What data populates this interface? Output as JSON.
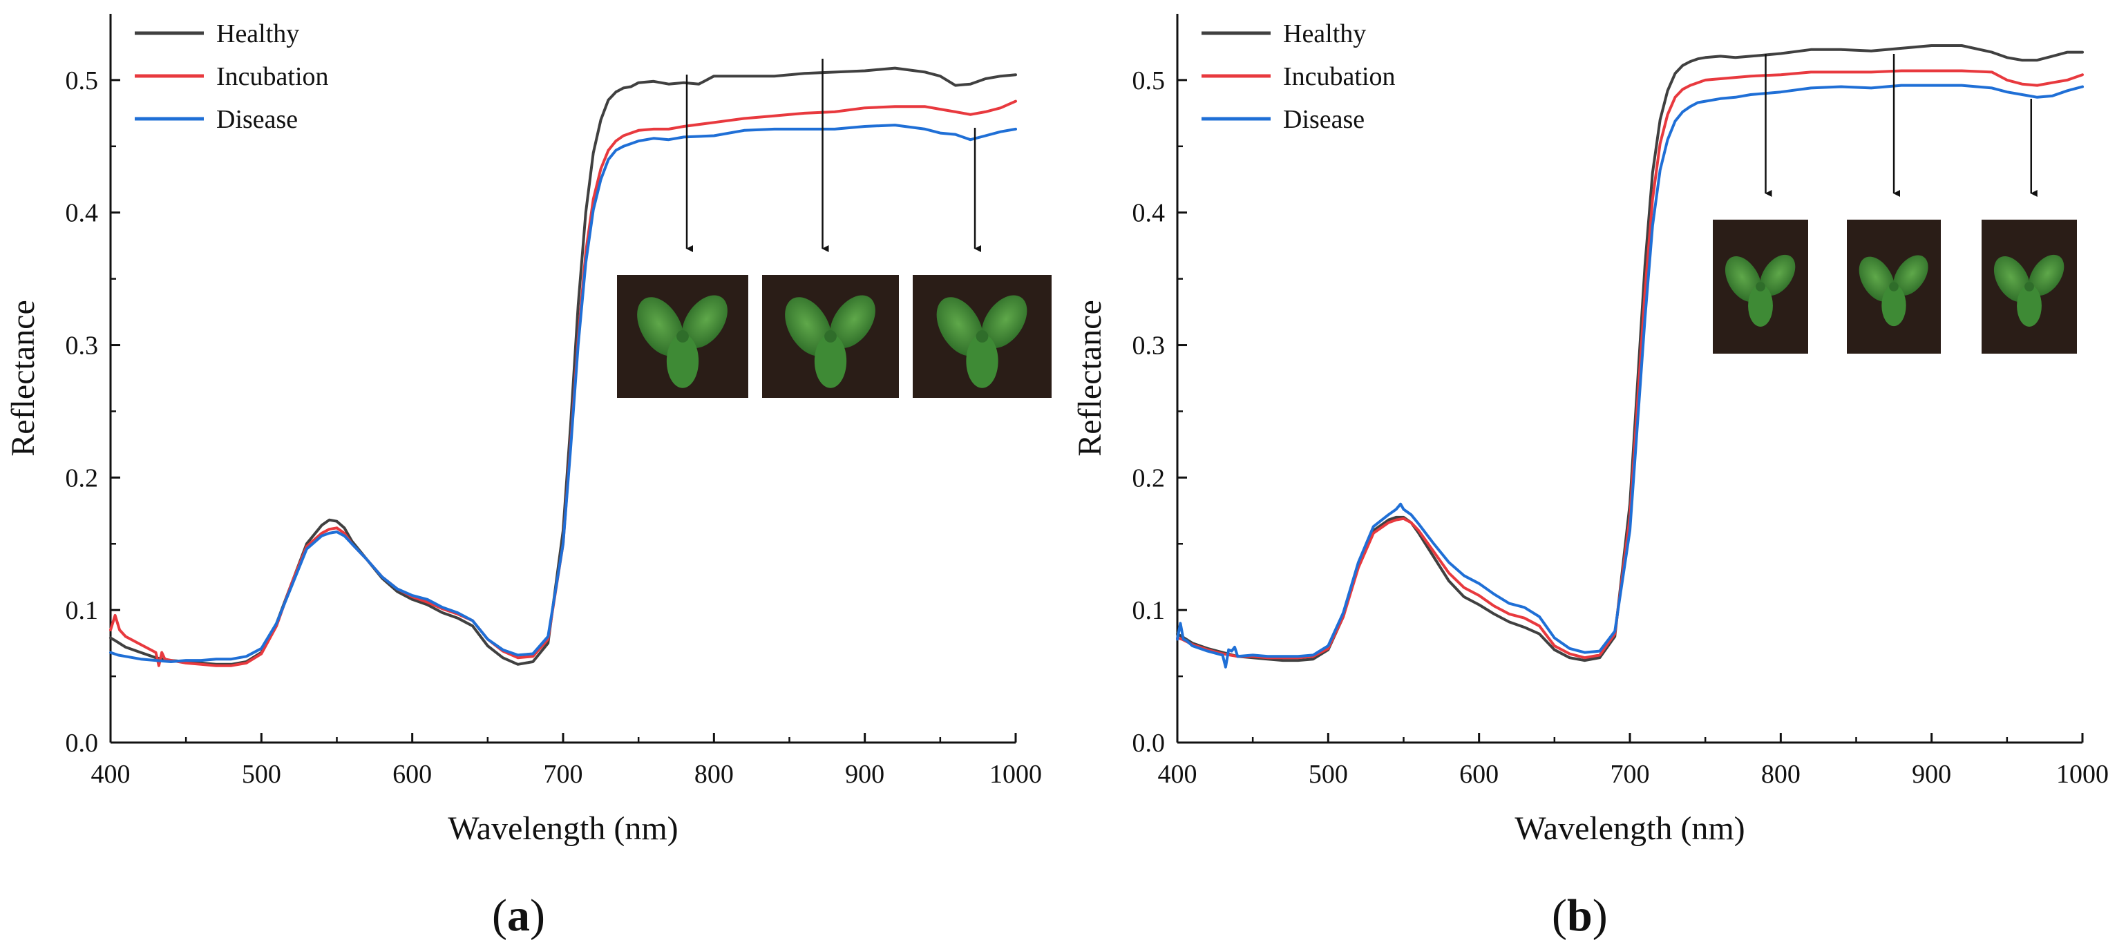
{
  "colors": {
    "healthy": "#404040",
    "incubation": "#e8393e",
    "disease": "#1f6fd6"
  },
  "panel_labels": [
    {
      "open": "(",
      "letter": "a",
      "close": ")"
    },
    {
      "open": "(",
      "letter": "b",
      "close": ")"
    }
  ],
  "chart_data": [
    {
      "type": "line",
      "panel": "a",
      "xlabel": "Wavelength (nm)",
      "ylabel": "Reflectance",
      "xlim": [
        400,
        1000
      ],
      "ylim": [
        0,
        0.55
      ],
      "xticks": [
        400,
        500,
        600,
        700,
        800,
        900,
        1000
      ],
      "xtick_labels": [
        "400",
        "500",
        "600",
        "700",
        "800",
        "900",
        "1000"
      ],
      "yticks": [
        0,
        0.1,
        0.2,
        0.3,
        0.4,
        0.5
      ],
      "ytick_labels": [
        "0.0",
        "0.1",
        "0.2",
        "0.3",
        "0.4",
        "0.5"
      ],
      "legend": {
        "position": "top-left",
        "entries": [
          "Healthy",
          "Incubation",
          "Disease"
        ]
      },
      "inset_markers_nm": [
        782,
        872,
        973
      ],
      "inset_marker_label": "leaf photo",
      "series": [
        {
          "name": "Healthy",
          "color_key": "healthy",
          "x": [
            400,
            403,
            410,
            420,
            430,
            440,
            450,
            460,
            470,
            480,
            490,
            500,
            510,
            520,
            530,
            540,
            545,
            550,
            555,
            560,
            570,
            580,
            590,
            600,
            610,
            620,
            630,
            640,
            650,
            660,
            670,
            680,
            690,
            700,
            705,
            710,
            715,
            720,
            725,
            730,
            735,
            740,
            745,
            750,
            760,
            770,
            780,
            790,
            800,
            820,
            840,
            860,
            880,
            900,
            920,
            940,
            950,
            960,
            970,
            980,
            990,
            1000
          ],
          "y": [
            0.079,
            0.077,
            0.072,
            0.068,
            0.064,
            0.062,
            0.061,
            0.06,
            0.059,
            0.059,
            0.061,
            0.068,
            0.09,
            0.12,
            0.15,
            0.164,
            0.168,
            0.167,
            0.162,
            0.152,
            0.138,
            0.124,
            0.114,
            0.108,
            0.104,
            0.098,
            0.094,
            0.088,
            0.073,
            0.064,
            0.059,
            0.061,
            0.075,
            0.16,
            0.24,
            0.33,
            0.4,
            0.445,
            0.47,
            0.485,
            0.491,
            0.494,
            0.495,
            0.498,
            0.499,
            0.497,
            0.498,
            0.497,
            0.503,
            0.503,
            0.503,
            0.505,
            0.506,
            0.507,
            0.509,
            0.506,
            0.503,
            0.496,
            0.497,
            0.501,
            0.503,
            0.504
          ]
        },
        {
          "name": "Incubation",
          "color_key": "incubation",
          "x": [
            400,
            403,
            406,
            410,
            420,
            430,
            432,
            434,
            436,
            440,
            450,
            460,
            470,
            480,
            490,
            500,
            510,
            520,
            530,
            540,
            545,
            550,
            555,
            560,
            570,
            580,
            590,
            600,
            610,
            620,
            630,
            640,
            650,
            660,
            670,
            680,
            690,
            700,
            705,
            710,
            715,
            720,
            725,
            730,
            735,
            740,
            745,
            750,
            760,
            770,
            780,
            800,
            820,
            840,
            860,
            880,
            900,
            920,
            940,
            950,
            960,
            970,
            980,
            990,
            1000
          ],
          "y": [
            0.085,
            0.096,
            0.085,
            0.08,
            0.074,
            0.068,
            0.058,
            0.068,
            0.063,
            0.062,
            0.06,
            0.059,
            0.058,
            0.058,
            0.06,
            0.067,
            0.088,
            0.12,
            0.148,
            0.158,
            0.161,
            0.162,
            0.158,
            0.15,
            0.138,
            0.125,
            0.116,
            0.11,
            0.106,
            0.101,
            0.097,
            0.092,
            0.078,
            0.069,
            0.064,
            0.065,
            0.078,
            0.15,
            0.225,
            0.305,
            0.37,
            0.41,
            0.433,
            0.447,
            0.454,
            0.458,
            0.46,
            0.462,
            0.463,
            0.463,
            0.465,
            0.468,
            0.471,
            0.473,
            0.475,
            0.476,
            0.479,
            0.48,
            0.48,
            0.478,
            0.476,
            0.474,
            0.476,
            0.479,
            0.484
          ]
        },
        {
          "name": "Disease",
          "color_key": "disease",
          "x": [
            400,
            405,
            410,
            420,
            430,
            440,
            450,
            460,
            470,
            480,
            490,
            500,
            510,
            520,
            530,
            540,
            545,
            550,
            555,
            560,
            570,
            580,
            590,
            600,
            610,
            620,
            630,
            640,
            650,
            660,
            670,
            680,
            690,
            700,
            705,
            710,
            715,
            720,
            725,
            730,
            735,
            740,
            745,
            750,
            760,
            770,
            780,
            800,
            820,
            840,
            860,
            880,
            900,
            920,
            940,
            950,
            960,
            970,
            980,
            990,
            1000
          ],
          "y": [
            0.068,
            0.066,
            0.065,
            0.063,
            0.062,
            0.061,
            0.062,
            0.062,
            0.063,
            0.063,
            0.065,
            0.071,
            0.09,
            0.118,
            0.146,
            0.156,
            0.158,
            0.159,
            0.156,
            0.15,
            0.138,
            0.125,
            0.116,
            0.111,
            0.108,
            0.102,
            0.098,
            0.092,
            0.078,
            0.07,
            0.066,
            0.067,
            0.08,
            0.15,
            0.222,
            0.3,
            0.362,
            0.402,
            0.425,
            0.44,
            0.447,
            0.45,
            0.452,
            0.454,
            0.456,
            0.455,
            0.457,
            0.458,
            0.462,
            0.463,
            0.463,
            0.463,
            0.465,
            0.466,
            0.463,
            0.46,
            0.459,
            0.455,
            0.458,
            0.461,
            0.463
          ]
        }
      ]
    },
    {
      "type": "line",
      "panel": "b",
      "xlabel": "Wavelength (nm)",
      "ylabel": "Reflectance",
      "xlim": [
        400,
        1000
      ],
      "ylim": [
        0,
        0.55
      ],
      "xticks": [
        400,
        500,
        600,
        700,
        800,
        900,
        1000
      ],
      "xtick_labels": [
        "400",
        "500",
        "600",
        "700",
        "800",
        "900",
        "1000"
      ],
      "yticks": [
        0,
        0.1,
        0.2,
        0.3,
        0.4,
        0.5
      ],
      "ytick_labels": [
        "0.0",
        "0.1",
        "0.2",
        "0.3",
        "0.4",
        "0.5"
      ],
      "legend": {
        "position": "top-left",
        "entries": [
          "Healthy",
          "Incubation",
          "Disease"
        ]
      },
      "inset_markers_nm": [
        790,
        875,
        966
      ],
      "inset_marker_label": "leaf photo",
      "series": [
        {
          "name": "Healthy",
          "color_key": "healthy",
          "x": [
            400,
            403,
            410,
            420,
            430,
            440,
            450,
            460,
            470,
            480,
            490,
            500,
            510,
            520,
            530,
            540,
            545,
            550,
            555,
            560,
            570,
            580,
            590,
            600,
            610,
            620,
            630,
            640,
            650,
            660,
            670,
            680,
            690,
            700,
            705,
            710,
            715,
            720,
            725,
            730,
            735,
            740,
            745,
            750,
            760,
            770,
            780,
            790,
            800,
            820,
            840,
            860,
            880,
            900,
            920,
            940,
            950,
            960,
            970,
            980,
            990,
            1000
          ],
          "y": [
            0.082,
            0.08,
            0.075,
            0.071,
            0.068,
            0.065,
            0.064,
            0.063,
            0.062,
            0.062,
            0.063,
            0.07,
            0.095,
            0.135,
            0.16,
            0.168,
            0.17,
            0.17,
            0.166,
            0.158,
            0.14,
            0.122,
            0.11,
            0.104,
            0.097,
            0.091,
            0.087,
            0.082,
            0.07,
            0.064,
            0.062,
            0.064,
            0.08,
            0.18,
            0.27,
            0.36,
            0.43,
            0.47,
            0.492,
            0.505,
            0.511,
            0.514,
            0.516,
            0.517,
            0.518,
            0.517,
            0.518,
            0.519,
            0.52,
            0.523,
            0.523,
            0.522,
            0.524,
            0.526,
            0.526,
            0.521,
            0.517,
            0.515,
            0.515,
            0.518,
            0.521,
            0.521
          ]
        },
        {
          "name": "Incubation",
          "color_key": "incubation",
          "x": [
            400,
            403,
            410,
            420,
            430,
            440,
            450,
            460,
            470,
            480,
            490,
            500,
            510,
            520,
            530,
            540,
            545,
            550,
            555,
            560,
            570,
            580,
            590,
            600,
            610,
            620,
            630,
            640,
            650,
            660,
            670,
            680,
            690,
            700,
            705,
            710,
            715,
            720,
            725,
            730,
            735,
            740,
            745,
            750,
            760,
            770,
            780,
            800,
            820,
            840,
            860,
            880,
            900,
            920,
            940,
            950,
            960,
            970,
            980,
            990,
            1000
          ],
          "y": [
            0.079,
            0.078,
            0.074,
            0.07,
            0.067,
            0.065,
            0.065,
            0.064,
            0.064,
            0.064,
            0.065,
            0.071,
            0.095,
            0.132,
            0.158,
            0.166,
            0.168,
            0.169,
            0.166,
            0.16,
            0.144,
            0.128,
            0.117,
            0.111,
            0.103,
            0.097,
            0.094,
            0.088,
            0.073,
            0.067,
            0.064,
            0.066,
            0.082,
            0.17,
            0.255,
            0.34,
            0.41,
            0.452,
            0.474,
            0.487,
            0.493,
            0.496,
            0.498,
            0.5,
            0.501,
            0.502,
            0.503,
            0.504,
            0.506,
            0.506,
            0.506,
            0.507,
            0.507,
            0.507,
            0.506,
            0.5,
            0.497,
            0.496,
            0.498,
            0.5,
            0.504
          ]
        },
        {
          "name": "Disease",
          "color_key": "disease",
          "x": [
            400,
            402,
            404,
            406,
            410,
            420,
            430,
            432,
            434,
            436,
            438,
            440,
            450,
            460,
            470,
            480,
            490,
            500,
            510,
            520,
            530,
            540,
            545,
            548,
            550,
            555,
            560,
            570,
            580,
            590,
            600,
            610,
            620,
            630,
            640,
            650,
            660,
            670,
            680,
            690,
            700,
            705,
            710,
            715,
            720,
            725,
            730,
            735,
            740,
            745,
            750,
            760,
            770,
            780,
            800,
            820,
            840,
            860,
            880,
            900,
            920,
            940,
            950,
            960,
            970,
            980,
            990,
            1000
          ],
          "y": [
            0.078,
            0.09,
            0.078,
            0.077,
            0.073,
            0.069,
            0.066,
            0.057,
            0.07,
            0.069,
            0.072,
            0.065,
            0.066,
            0.065,
            0.065,
            0.065,
            0.066,
            0.073,
            0.098,
            0.136,
            0.163,
            0.172,
            0.176,
            0.18,
            0.176,
            0.172,
            0.165,
            0.15,
            0.136,
            0.126,
            0.12,
            0.112,
            0.105,
            0.102,
            0.095,
            0.079,
            0.071,
            0.068,
            0.069,
            0.084,
            0.16,
            0.24,
            0.32,
            0.39,
            0.432,
            0.455,
            0.469,
            0.476,
            0.48,
            0.483,
            0.484,
            0.486,
            0.487,
            0.489,
            0.491,
            0.494,
            0.495,
            0.494,
            0.496,
            0.496,
            0.496,
            0.494,
            0.491,
            0.489,
            0.487,
            0.488,
            0.492,
            0.495
          ]
        }
      ]
    }
  ]
}
